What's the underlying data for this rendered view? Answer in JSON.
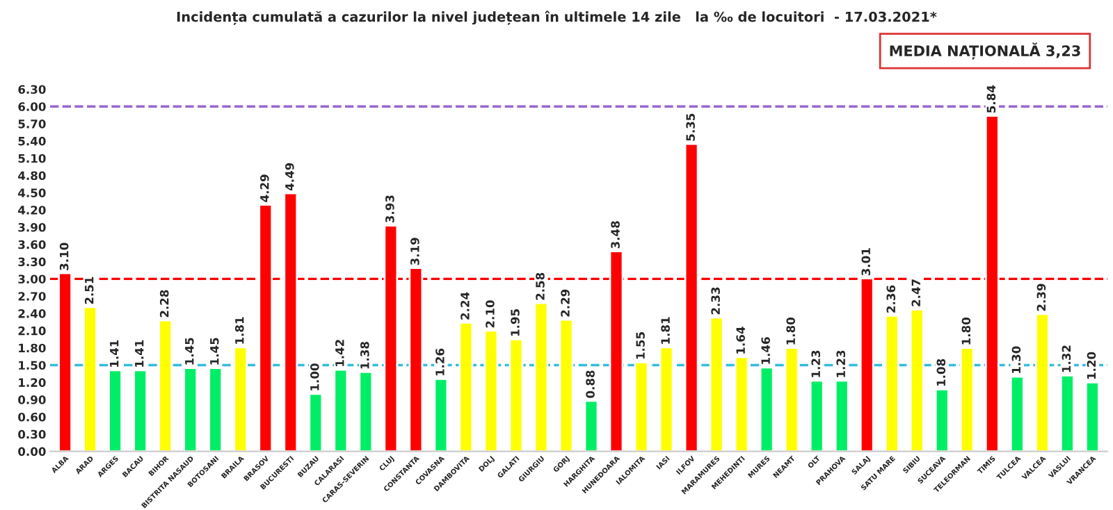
{
  "chart_data": {
    "type": "bar",
    "title": "Incidența cumulată a cazurilor la nivel județean în ultimele 14 zile   la ‰ de locuitori  - 17.03.2021*",
    "annotations": [
      "MEDIA NAȚIONALĂ 3,23"
    ],
    "categories": [
      "ALBA",
      "ARAD",
      "ARGES",
      "BACAU",
      "BIHOR",
      "BISTRITA NASAUD",
      "BOTOSANI",
      "BRAILA",
      "BRASOV",
      "BUCURESTI",
      "BUZAU",
      "CALARASI",
      "CARAS-SEVERIN",
      "CLUJ",
      "CONSTANTA",
      "COVASNA",
      "DAMBOVITA",
      "DOLJ",
      "GALATI",
      "GIURGIU",
      "GORJ",
      "HARGHITA",
      "HUNEDOARA",
      "IALOMITA",
      "IASI",
      "ILFOV",
      "MARAMURES",
      "MEHEDINTI",
      "MURES",
      "NEAMT",
      "OLT",
      "PRAHOVA",
      "SALAJ",
      "SATU MARE",
      "SIBIU",
      "SUCEAVA",
      "TELEORMAN",
      "TIMIS",
      "TULCEA",
      "VALCEA",
      "VASLUI",
      "VRANCEA"
    ],
    "values": [
      3.1,
      2.51,
      1.41,
      1.41,
      2.28,
      1.45,
      1.45,
      1.81,
      4.29,
      4.49,
      1.0,
      1.42,
      1.38,
      3.93,
      3.19,
      1.26,
      2.24,
      2.1,
      1.95,
      2.58,
      2.29,
      0.88,
      3.48,
      1.55,
      1.81,
      5.35,
      2.33,
      1.64,
      1.46,
      1.8,
      1.23,
      1.23,
      3.01,
      2.36,
      2.47,
      1.08,
      1.8,
      5.84,
      1.3,
      2.39,
      1.32,
      1.2
    ],
    "value_labels": [
      "3.10",
      "2.51",
      "1.41",
      "1.41",
      "2.28",
      "1.45",
      "1.45",
      "1.81",
      "4.29",
      "4.49",
      "1.00",
      "1.42",
      "1.38",
      "3.93",
      "3.19",
      "1.26",
      "2.24",
      "2.10",
      "1.95",
      "2.58",
      "2.29",
      "0.88",
      "3.48",
      "1.55",
      "1.81",
      "5.35",
      "2.33",
      "1.64",
      "1.46",
      "1.80",
      "1.23",
      "1.23",
      "3.01",
      "2.36",
      "2.47",
      "1.08",
      "1.80",
      "5.84",
      "1.30",
      "2.39",
      "1.32",
      "1.20"
    ],
    "colors": [
      "#ff0000",
      "#ffff00",
      "#00ee66",
      "#00ee66",
      "#ffff00",
      "#00ee66",
      "#00ee66",
      "#ffff00",
      "#ff0000",
      "#ff0000",
      "#00ee66",
      "#00ee66",
      "#00ee66",
      "#ff0000",
      "#ff0000",
      "#00ee66",
      "#ffff00",
      "#ffff00",
      "#ffff00",
      "#ffff00",
      "#ffff00",
      "#00ee66",
      "#ff0000",
      "#ffff00",
      "#ffff00",
      "#ff0000",
      "#ffff00",
      "#ffff00",
      "#00ee66",
      "#ffff00",
      "#00ee66",
      "#00ee66",
      "#ff0000",
      "#ffff00",
      "#ffff00",
      "#00ee66",
      "#ffff00",
      "#ff0000",
      "#00ee66",
      "#ffff00",
      "#00ee66",
      "#00ee66"
    ],
    "ylim": [
      0,
      6.3
    ],
    "yticks": [
      {
        "value": 0,
        "label": "0.00"
      },
      {
        "value": 0.3,
        "label": "0.30"
      },
      {
        "value": 0.6,
        "label": "0.60"
      },
      {
        "value": 0.9,
        "label": "0.90"
      },
      {
        "value": 1.2,
        "label": "1.20"
      },
      {
        "value": 1.5,
        "label": "1.50"
      },
      {
        "value": 1.8,
        "label": "1.80"
      },
      {
        "value": 2.1,
        "label": "2.10"
      },
      {
        "value": 2.4,
        "label": "2.40"
      },
      {
        "value": 2.7,
        "label": "2.70"
      },
      {
        "value": 3.0,
        "label": "3.00"
      },
      {
        "value": 3.3,
        "label": "3.30"
      },
      {
        "value": 3.6,
        "label": "3.60"
      },
      {
        "value": 3.9,
        "label": "3.90"
      },
      {
        "value": 4.2,
        "label": "4.20"
      },
      {
        "value": 4.5,
        "label": "4.50"
      },
      {
        "value": 4.8,
        "label": "4.80"
      },
      {
        "value": 5.1,
        "label": "5.10"
      },
      {
        "value": 5.4,
        "label": "5.40"
      },
      {
        "value": 5.7,
        "label": "5.70"
      },
      {
        "value": 6.0,
        "label": "6.00"
      },
      {
        "value": 6.3,
        "label": "6.30"
      }
    ],
    "ref_lines": [
      {
        "axis": "y",
        "value": 6.0,
        "color": "#9966cc",
        "line_style": "dashed"
      },
      {
        "axis": "y",
        "value": 3.0,
        "color": "#ff0000",
        "line_style": "dashed"
      },
      {
        "axis": "y",
        "value": 1.5,
        "color": "#33bbdd",
        "line_style": "dashed"
      }
    ],
    "grid": false,
    "legend": false
  }
}
